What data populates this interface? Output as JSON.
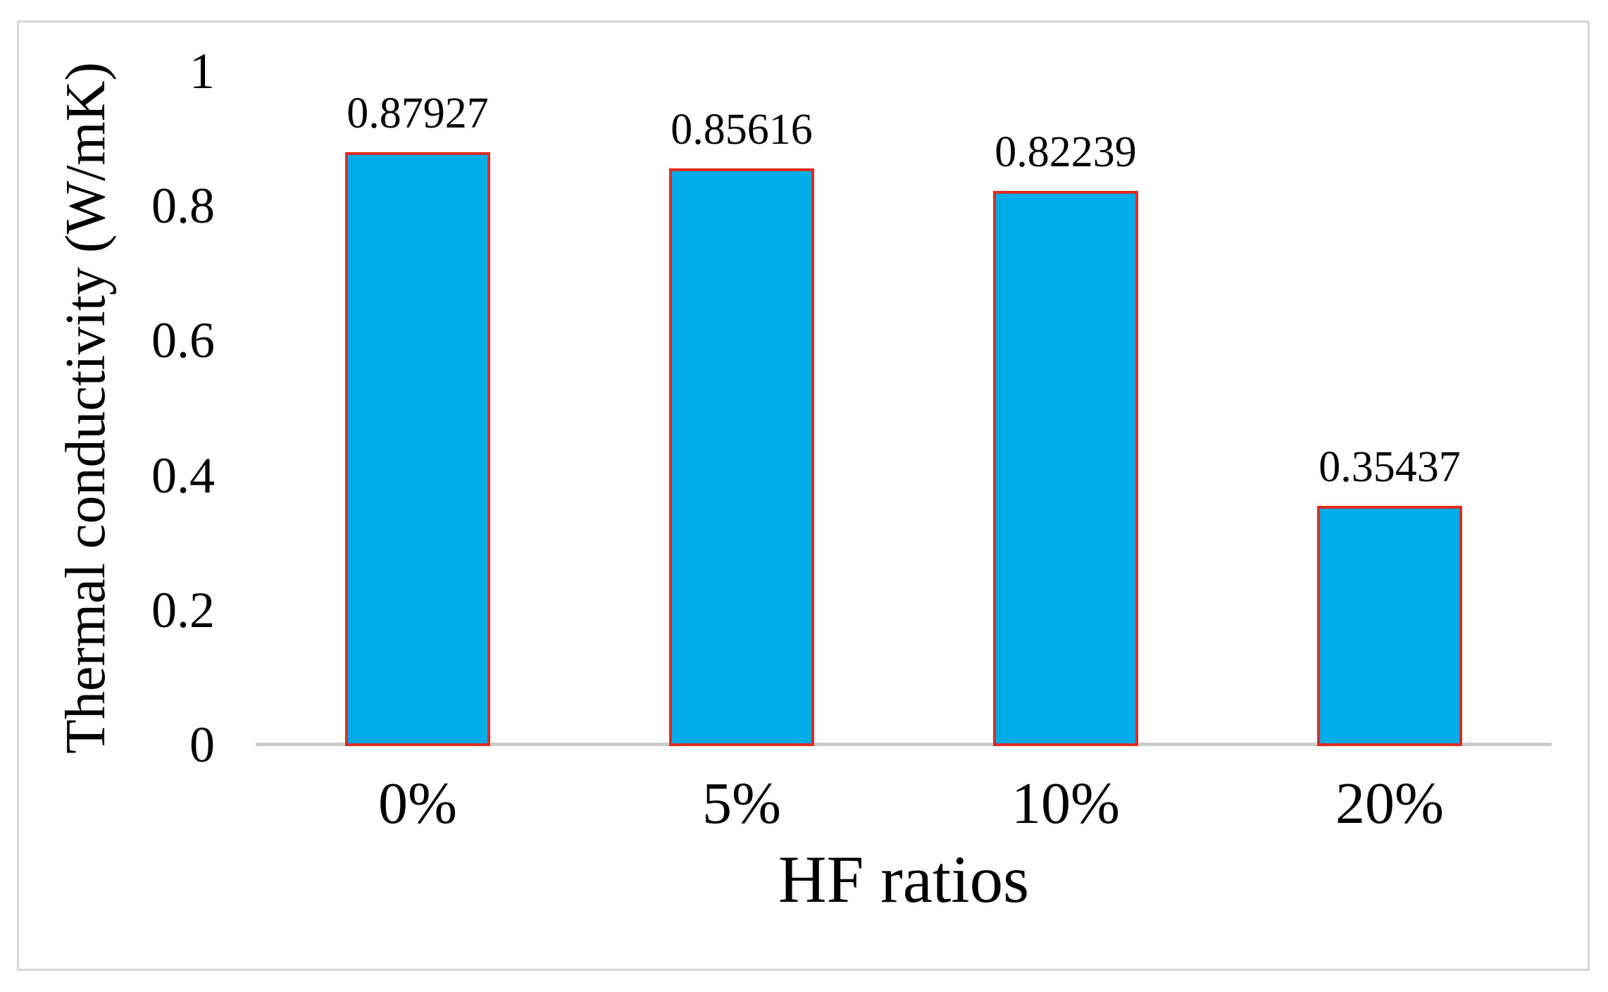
{
  "chart_data": {
    "type": "bar",
    "title": "",
    "categories": [
      "0%",
      "5%",
      "10%",
      "20%"
    ],
    "values": [
      0.87927,
      0.85616,
      0.82239,
      0.35437
    ],
    "value_labels": [
      "0.87927",
      "0.85616",
      "0.82239",
      "0.35437"
    ],
    "xlabel": "HF ratios",
    "ylabel": "Thermal conductivity  (W/mK)",
    "ylim": [
      0,
      1
    ],
    "yticks": [
      0,
      0.2,
      0.4,
      0.6,
      0.8,
      1
    ],
    "ytick_labels": [
      "0",
      "0.2",
      "0.4",
      "0.6",
      "0.8",
      "1"
    ],
    "grid": false,
    "legend": "none",
    "bar_border_visible": true
  },
  "colors": {
    "bar_fill": "#00ADE9",
    "bar_border": "#E02B1E",
    "axis_line": "#CBCBCB",
    "text": "#000000",
    "frame_border": "#D7D7D7",
    "background": "#FFFFFF"
  }
}
